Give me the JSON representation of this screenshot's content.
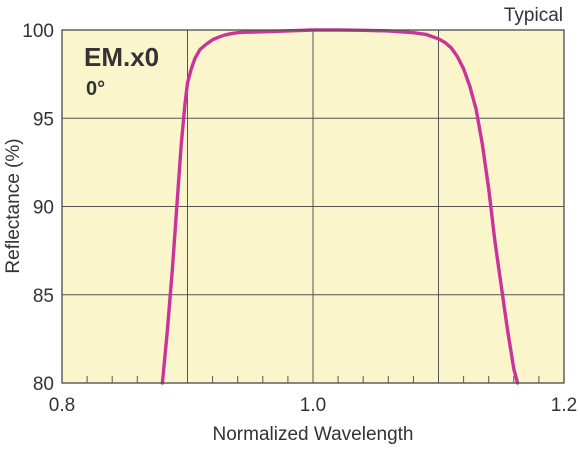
{
  "chart_data": {
    "type": "line",
    "corner_note": "Typical",
    "legend_title": "EM.x0",
    "legend_subtitle": "0°",
    "xlabel": "Normalized Wavelength",
    "ylabel": "Reflectance (%)",
    "xlim": [
      0.8,
      1.2
    ],
    "ylim": [
      80,
      100
    ],
    "xticks": [
      0.8,
      1.0,
      1.2
    ],
    "xtick_labels": [
      "0.8",
      "1.0",
      "1.2"
    ],
    "xgrid": [
      0.9,
      1.0,
      1.1
    ],
    "xminor_step": 0.02,
    "yticks": [
      80,
      85,
      90,
      95,
      100
    ],
    "ytick_labels": [
      "80",
      "85",
      "90",
      "95",
      "100"
    ],
    "grid": true,
    "background_color": "#fbf5cc",
    "line_color": "#cc3399",
    "series": [
      {
        "x": [
          0.88,
          0.884,
          0.888,
          0.892,
          0.895,
          0.898,
          0.9,
          0.903,
          0.906,
          0.91,
          0.915,
          0.92,
          0.925,
          0.93,
          0.935,
          0.94,
          0.945,
          0.95,
          0.96,
          0.98,
          1.0,
          1.02,
          1.04,
          1.06,
          1.08,
          1.09,
          1.1,
          1.105,
          1.11,
          1.115,
          1.12,
          1.125,
          1.13,
          1.135,
          1.14,
          1.145,
          1.15,
          1.155,
          1.16,
          1.163
        ],
        "y": [
          80.0,
          83.0,
          86.5,
          90.5,
          93.5,
          95.8,
          97.0,
          97.8,
          98.4,
          98.9,
          99.2,
          99.45,
          99.6,
          99.72,
          99.8,
          99.85,
          99.88,
          99.88,
          99.9,
          99.95,
          100.0,
          100.0,
          99.98,
          99.95,
          99.85,
          99.75,
          99.5,
          99.3,
          99.0,
          98.5,
          97.8,
          96.8,
          95.5,
          93.5,
          91.0,
          88.0,
          85.5,
          83.0,
          80.8,
          80.0
        ]
      }
    ]
  }
}
